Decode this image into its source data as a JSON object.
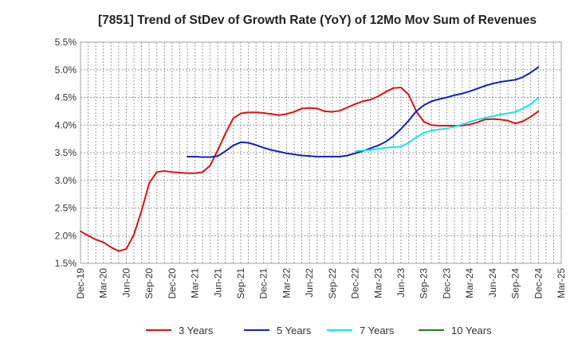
{
  "chart_data": {
    "type": "line",
    "title": "[7851]  Trend of StDev of Growth Rate (YoY) of 12Mo Mov Sum of Revenues",
    "xlabel": "",
    "ylabel": "",
    "ylim": [
      1.5,
      5.5
    ],
    "y_ticks": [
      "5.5%",
      "5.0%",
      "4.5%",
      "4.0%",
      "3.5%",
      "3.0%",
      "2.5%",
      "2.0%",
      "1.5%"
    ],
    "y_tick_values": [
      5.5,
      5.0,
      4.5,
      4.0,
      3.5,
      3.0,
      2.5,
      2.0,
      1.5
    ],
    "x_ticks": [
      "Dec-19",
      "Mar-20",
      "Jun-20",
      "Sep-20",
      "Dec-20",
      "Mar-21",
      "Jun-21",
      "Sep-21",
      "Dec-21",
      "Mar-22",
      "Jun-22",
      "Sep-22",
      "Dec-22",
      "Mar-23",
      "Jun-23",
      "Sep-23",
      "Dec-23",
      "Mar-24",
      "Jun-24",
      "Sep-24",
      "Dec-24",
      "Mar-25"
    ],
    "grid": true,
    "legend_position": "bottom",
    "series": [
      {
        "name": "3 Years",
        "color": "#e01010",
        "start_index": 0,
        "values": [
          2.08,
          2.0,
          1.93,
          1.88,
          1.79,
          1.72,
          1.76,
          2.02,
          2.45,
          2.95,
          3.15,
          3.17,
          3.15,
          3.14,
          3.13,
          3.13,
          3.15,
          3.27,
          3.55,
          3.85,
          4.12,
          4.21,
          4.23,
          4.23,
          4.22,
          4.2,
          4.18,
          4.2,
          4.24,
          4.3,
          4.31,
          4.3,
          4.25,
          4.24,
          4.26,
          4.32,
          4.38,
          4.43,
          4.46,
          4.52,
          4.6,
          4.67,
          4.68,
          4.55,
          4.25,
          4.06,
          4.0,
          3.99,
          3.99,
          3.99,
          3.99,
          4.01,
          4.05,
          4.1,
          4.11,
          4.1,
          4.08,
          4.03,
          4.07,
          4.15,
          4.25
        ]
      },
      {
        "name": "5 Years",
        "color": "#1020c0",
        "start_index": 14,
        "values": [
          3.43,
          3.43,
          3.42,
          3.42,
          3.44,
          3.53,
          3.63,
          3.69,
          3.68,
          3.64,
          3.59,
          3.55,
          3.52,
          3.49,
          3.47,
          3.45,
          3.44,
          3.43,
          3.43,
          3.43,
          3.43,
          3.45,
          3.49,
          3.53,
          3.58,
          3.63,
          3.7,
          3.8,
          3.93,
          4.08,
          4.25,
          4.36,
          4.43,
          4.47,
          4.5,
          4.54,
          4.57,
          4.61,
          4.66,
          4.71,
          4.75,
          4.78,
          4.8,
          4.82,
          4.87,
          4.95,
          5.05
        ]
      },
      {
        "name": "7 Years",
        "color": "#10e8e8",
        "start_index": 36,
        "values": [
          3.53,
          3.54,
          3.55,
          3.57,
          3.59,
          3.6,
          3.61,
          3.68,
          3.78,
          3.86,
          3.9,
          3.92,
          3.94,
          3.97,
          4.01,
          4.06,
          4.1,
          4.13,
          4.16,
          4.19,
          4.21,
          4.24,
          4.3,
          4.38,
          4.49
        ]
      },
      {
        "name": "10 Years",
        "color": "#208020",
        "start_index": 0,
        "values": []
      }
    ]
  }
}
